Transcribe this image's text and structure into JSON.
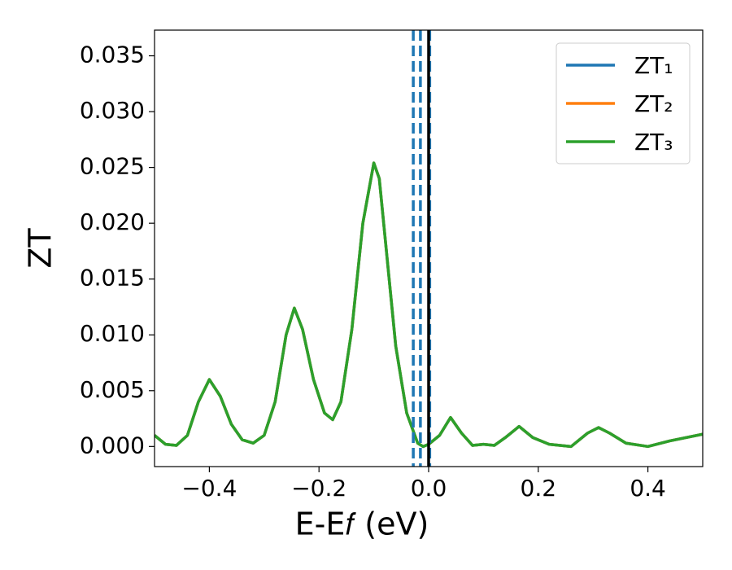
{
  "chart_data": {
    "type": "line",
    "xlabel": "E-E𝑓 (eV)",
    "ylabel": "ZT",
    "x": [
      -0.5,
      -0.48,
      -0.46,
      -0.44,
      -0.42,
      -0.4,
      -0.38,
      -0.36,
      -0.34,
      -0.32,
      -0.3,
      -0.28,
      -0.26,
      -0.245,
      -0.23,
      -0.21,
      -0.19,
      -0.175,
      -0.16,
      -0.14,
      -0.12,
      -0.1,
      -0.09,
      -0.08,
      -0.06,
      -0.04,
      -0.02,
      -0.01,
      0.0,
      0.02,
      0.04,
      0.06,
      0.08,
      0.1,
      0.12,
      0.14,
      0.165,
      0.19,
      0.22,
      0.26,
      0.29,
      0.31,
      0.33,
      0.36,
      0.4,
      0.44,
      0.5
    ],
    "series": [
      {
        "name": "ZT₁",
        "color": "#1f77b4",
        "values": [
          0.001,
          0.0002,
          0.0001,
          0.001,
          0.004,
          0.006,
          0.0045,
          0.002,
          0.0006,
          0.0003,
          0.001,
          0.004,
          0.01,
          0.0124,
          0.0105,
          0.006,
          0.003,
          0.0024,
          0.004,
          0.0105,
          0.02,
          0.0254,
          0.024,
          0.019,
          0.009,
          0.003,
          0.0003,
          0.0,
          0.0002,
          0.001,
          0.0026,
          0.0012,
          0.0001,
          0.0002,
          0.0001,
          0.0008,
          0.0018,
          0.0008,
          0.0002,
          0.0,
          0.0012,
          0.0017,
          0.0012,
          0.0003,
          0.0,
          0.0005,
          0.0011
        ]
      },
      {
        "name": "ZT₂",
        "color": "#ff7f0e",
        "values": [
          0.001,
          0.0002,
          0.0001,
          0.001,
          0.004,
          0.006,
          0.0045,
          0.002,
          0.0006,
          0.0003,
          0.001,
          0.004,
          0.01,
          0.0124,
          0.0105,
          0.006,
          0.003,
          0.0024,
          0.004,
          0.0105,
          0.02,
          0.0254,
          0.024,
          0.019,
          0.009,
          0.003,
          0.0003,
          0.0,
          0.0002,
          0.001,
          0.0026,
          0.0012,
          0.0001,
          0.0002,
          0.0001,
          0.0008,
          0.0018,
          0.0008,
          0.0002,
          0.0,
          0.0012,
          0.0017,
          0.0012,
          0.0003,
          0.0,
          0.0005,
          0.0011
        ]
      },
      {
        "name": "ZT₃",
        "color": "#2ca02c",
        "values": [
          0.001,
          0.0002,
          0.0001,
          0.001,
          0.004,
          0.006,
          0.0045,
          0.002,
          0.0006,
          0.0003,
          0.001,
          0.004,
          0.01,
          0.0124,
          0.0105,
          0.006,
          0.003,
          0.0024,
          0.004,
          0.0105,
          0.02,
          0.0254,
          0.024,
          0.019,
          0.009,
          0.003,
          0.0003,
          0.0,
          0.0002,
          0.001,
          0.0026,
          0.0012,
          0.0001,
          0.0002,
          0.0001,
          0.0008,
          0.0018,
          0.0008,
          0.0002,
          0.0,
          0.0012,
          0.0017,
          0.0012,
          0.0003,
          0.0,
          0.0005,
          0.0011
        ]
      }
    ],
    "vlines": [
      {
        "x": -0.028,
        "color": "#1f77b4",
        "dashed": true
      },
      {
        "x": -0.015,
        "color": "#1f77b4",
        "dashed": true
      },
      {
        "x": 0.002,
        "color": "#1f77b4",
        "dashed": true
      },
      {
        "x": 0.0,
        "color": "#000000",
        "dashed": false
      }
    ],
    "xlim": [
      -0.5,
      0.5
    ],
    "xticks": [
      {
        "value": -0.4,
        "label": "−0.4"
      },
      {
        "value": -0.2,
        "label": "−0.2"
      },
      {
        "value": 0,
        "label": "0.0"
      },
      0.2,
      0.4
    ],
    "ylim": [
      -0.0018,
      0.0373
    ],
    "yticks": [
      {
        "value": 0,
        "label": "0.000"
      },
      0.005,
      {
        "value": 0.01,
        "label": "0.010"
      },
      0.015,
      {
        "value": 0.02,
        "label": "0.020"
      },
      0.025,
      {
        "value": 0.03,
        "label": "0.030"
      },
      0.035
    ],
    "grid": false,
    "legend": "upper right"
  }
}
